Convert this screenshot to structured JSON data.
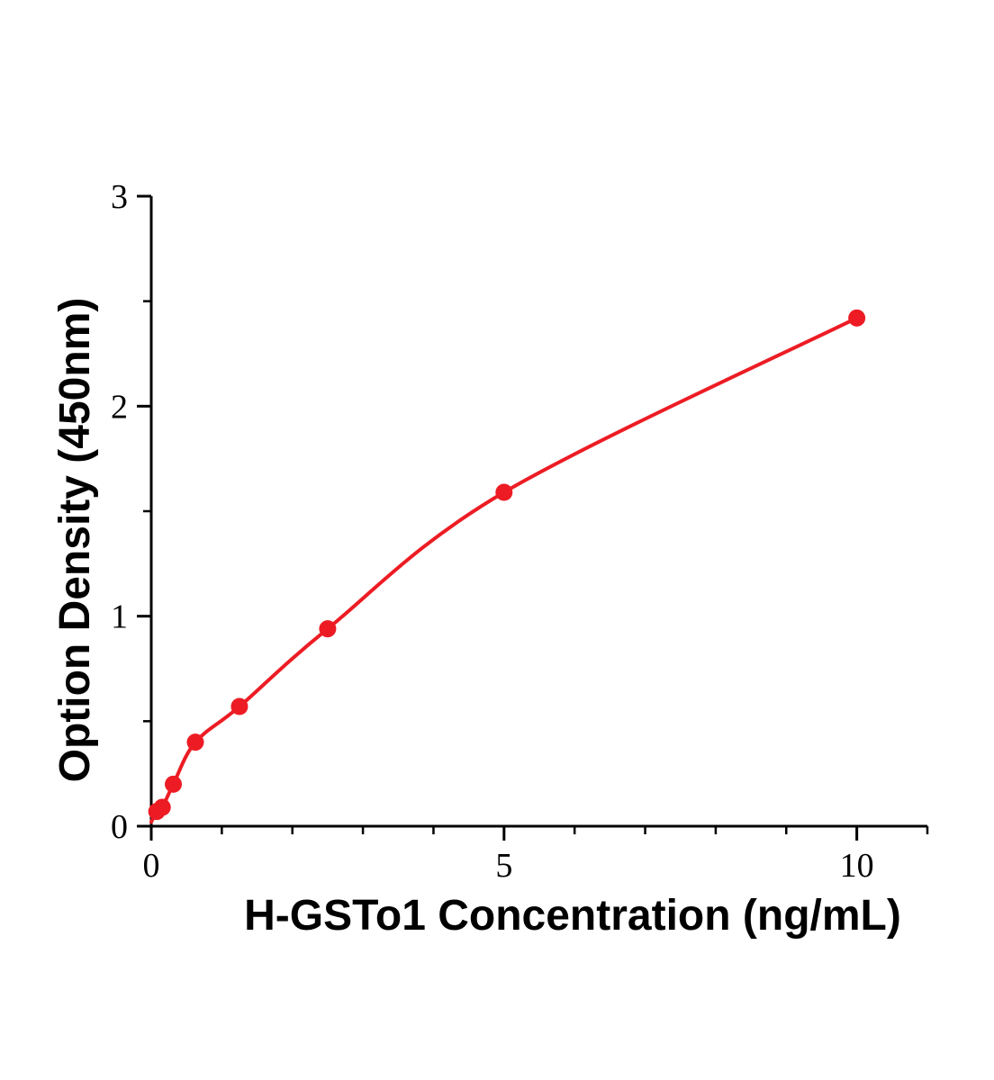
{
  "chart_data": {
    "type": "scatter",
    "title": "",
    "xlabel": "H-GSTo1 Concentration (ng/mL)",
    "ylabel": "Option Density (450nm)",
    "x": [
      0.078,
      0.156,
      0.313,
      0.625,
      1.25,
      2.5,
      5,
      10
    ],
    "y": [
      0.07,
      0.09,
      0.2,
      0.4,
      0.57,
      0.94,
      1.59,
      2.42
    ],
    "curve_start": [
      0,
      0.02
    ],
    "xlim": [
      0,
      11
    ],
    "ylim": [
      0,
      3
    ],
    "x_major_ticks": [
      0,
      5,
      10
    ],
    "x_major_tick_labels": [
      "0",
      "5",
      "10"
    ],
    "x_minor_tick_step": 1,
    "y_major_ticks": [
      0,
      1,
      2,
      3
    ],
    "y_major_tick_labels": [
      "0",
      "1",
      "2",
      "3"
    ],
    "y_minor_tick_step": 0.5,
    "line_color": "#ed1c24",
    "point_color": "#ed1c24",
    "axis_color": "#000000",
    "grid": false,
    "legend": "none"
  }
}
